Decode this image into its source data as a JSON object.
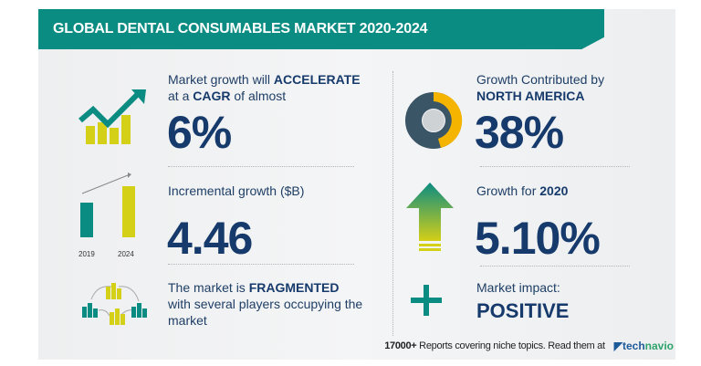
{
  "header": {
    "title": "GLOBAL DENTAL CONSUMABLES MARKET 2020-2024"
  },
  "cagr": {
    "text_a": "Market growth will ",
    "text_b": "ACCELERATE",
    "text_c": "at a ",
    "text_d": "CAGR",
    "text_e": " of almost",
    "value": "6%"
  },
  "region": {
    "text_a": "Growth Contributed by",
    "text_b": "NORTH AMERICA",
    "value": "38%",
    "share": 0.38
  },
  "incremental": {
    "label": "Incremental growth ($B)",
    "value": "4.46",
    "year_start": "2019",
    "year_end": "2024"
  },
  "yoy": {
    "text_a": "Growth for ",
    "text_b": "2020",
    "value": "5.10%"
  },
  "market": {
    "text_a": "The market is ",
    "text_b": "FRAGMENTED",
    "text_c": "with several players occupying the market"
  },
  "impact": {
    "label": "Market impact:",
    "value": "POSITIVE"
  },
  "footer": {
    "count": "17000+",
    "text": " Reports covering niche topics. Read them at",
    "logo_a": "tech",
    "logo_b": "navio"
  },
  "colors": {
    "teal": "#0b8c82",
    "navy": "#163a6b",
    "yellow": "#d4cf17",
    "gold": "#f4b400",
    "slate": "#3a5566"
  }
}
